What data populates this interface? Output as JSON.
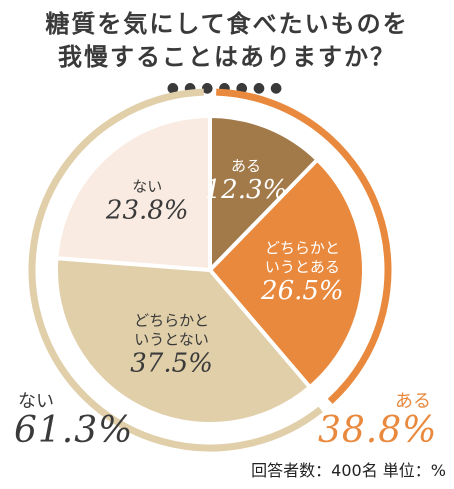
{
  "title_line1": "糖質を気にして食べたいものを",
  "title_line2": "我慢することはありますか？",
  "dots": "●●●●●●●",
  "note": "回答者数：400名 単位：%",
  "colors": {
    "aru": "#a27a4a",
    "dochiraka_aru": "#e9893e",
    "dochiraka_nai": "#e0cfa9",
    "nai": "#f9ebe1",
    "ring_yes": "#e9893e",
    "ring_no": "#e0cfa9",
    "dark_text": "#3a3a3a",
    "light_text": "#ffffff"
  },
  "chart_data": {
    "type": "pie",
    "slices": [
      {
        "label": "ある",
        "value": 12.3,
        "pct_label": "12.3%"
      },
      {
        "label": "どちらかと\nいうとある",
        "value": 26.5,
        "pct_label": "26.5%"
      },
      {
        "label": "どちらかと\nいうとない",
        "value": 37.5,
        "pct_label": "37.5%"
      },
      {
        "label": "ない",
        "value": 23.8,
        "pct_label": "23.8%"
      }
    ],
    "groups": [
      {
        "label": "ある",
        "value": 38.8,
        "pct_label": "38.8%"
      },
      {
        "label": "ない",
        "value": 61.3,
        "pct_label": "61.3%"
      }
    ]
  }
}
